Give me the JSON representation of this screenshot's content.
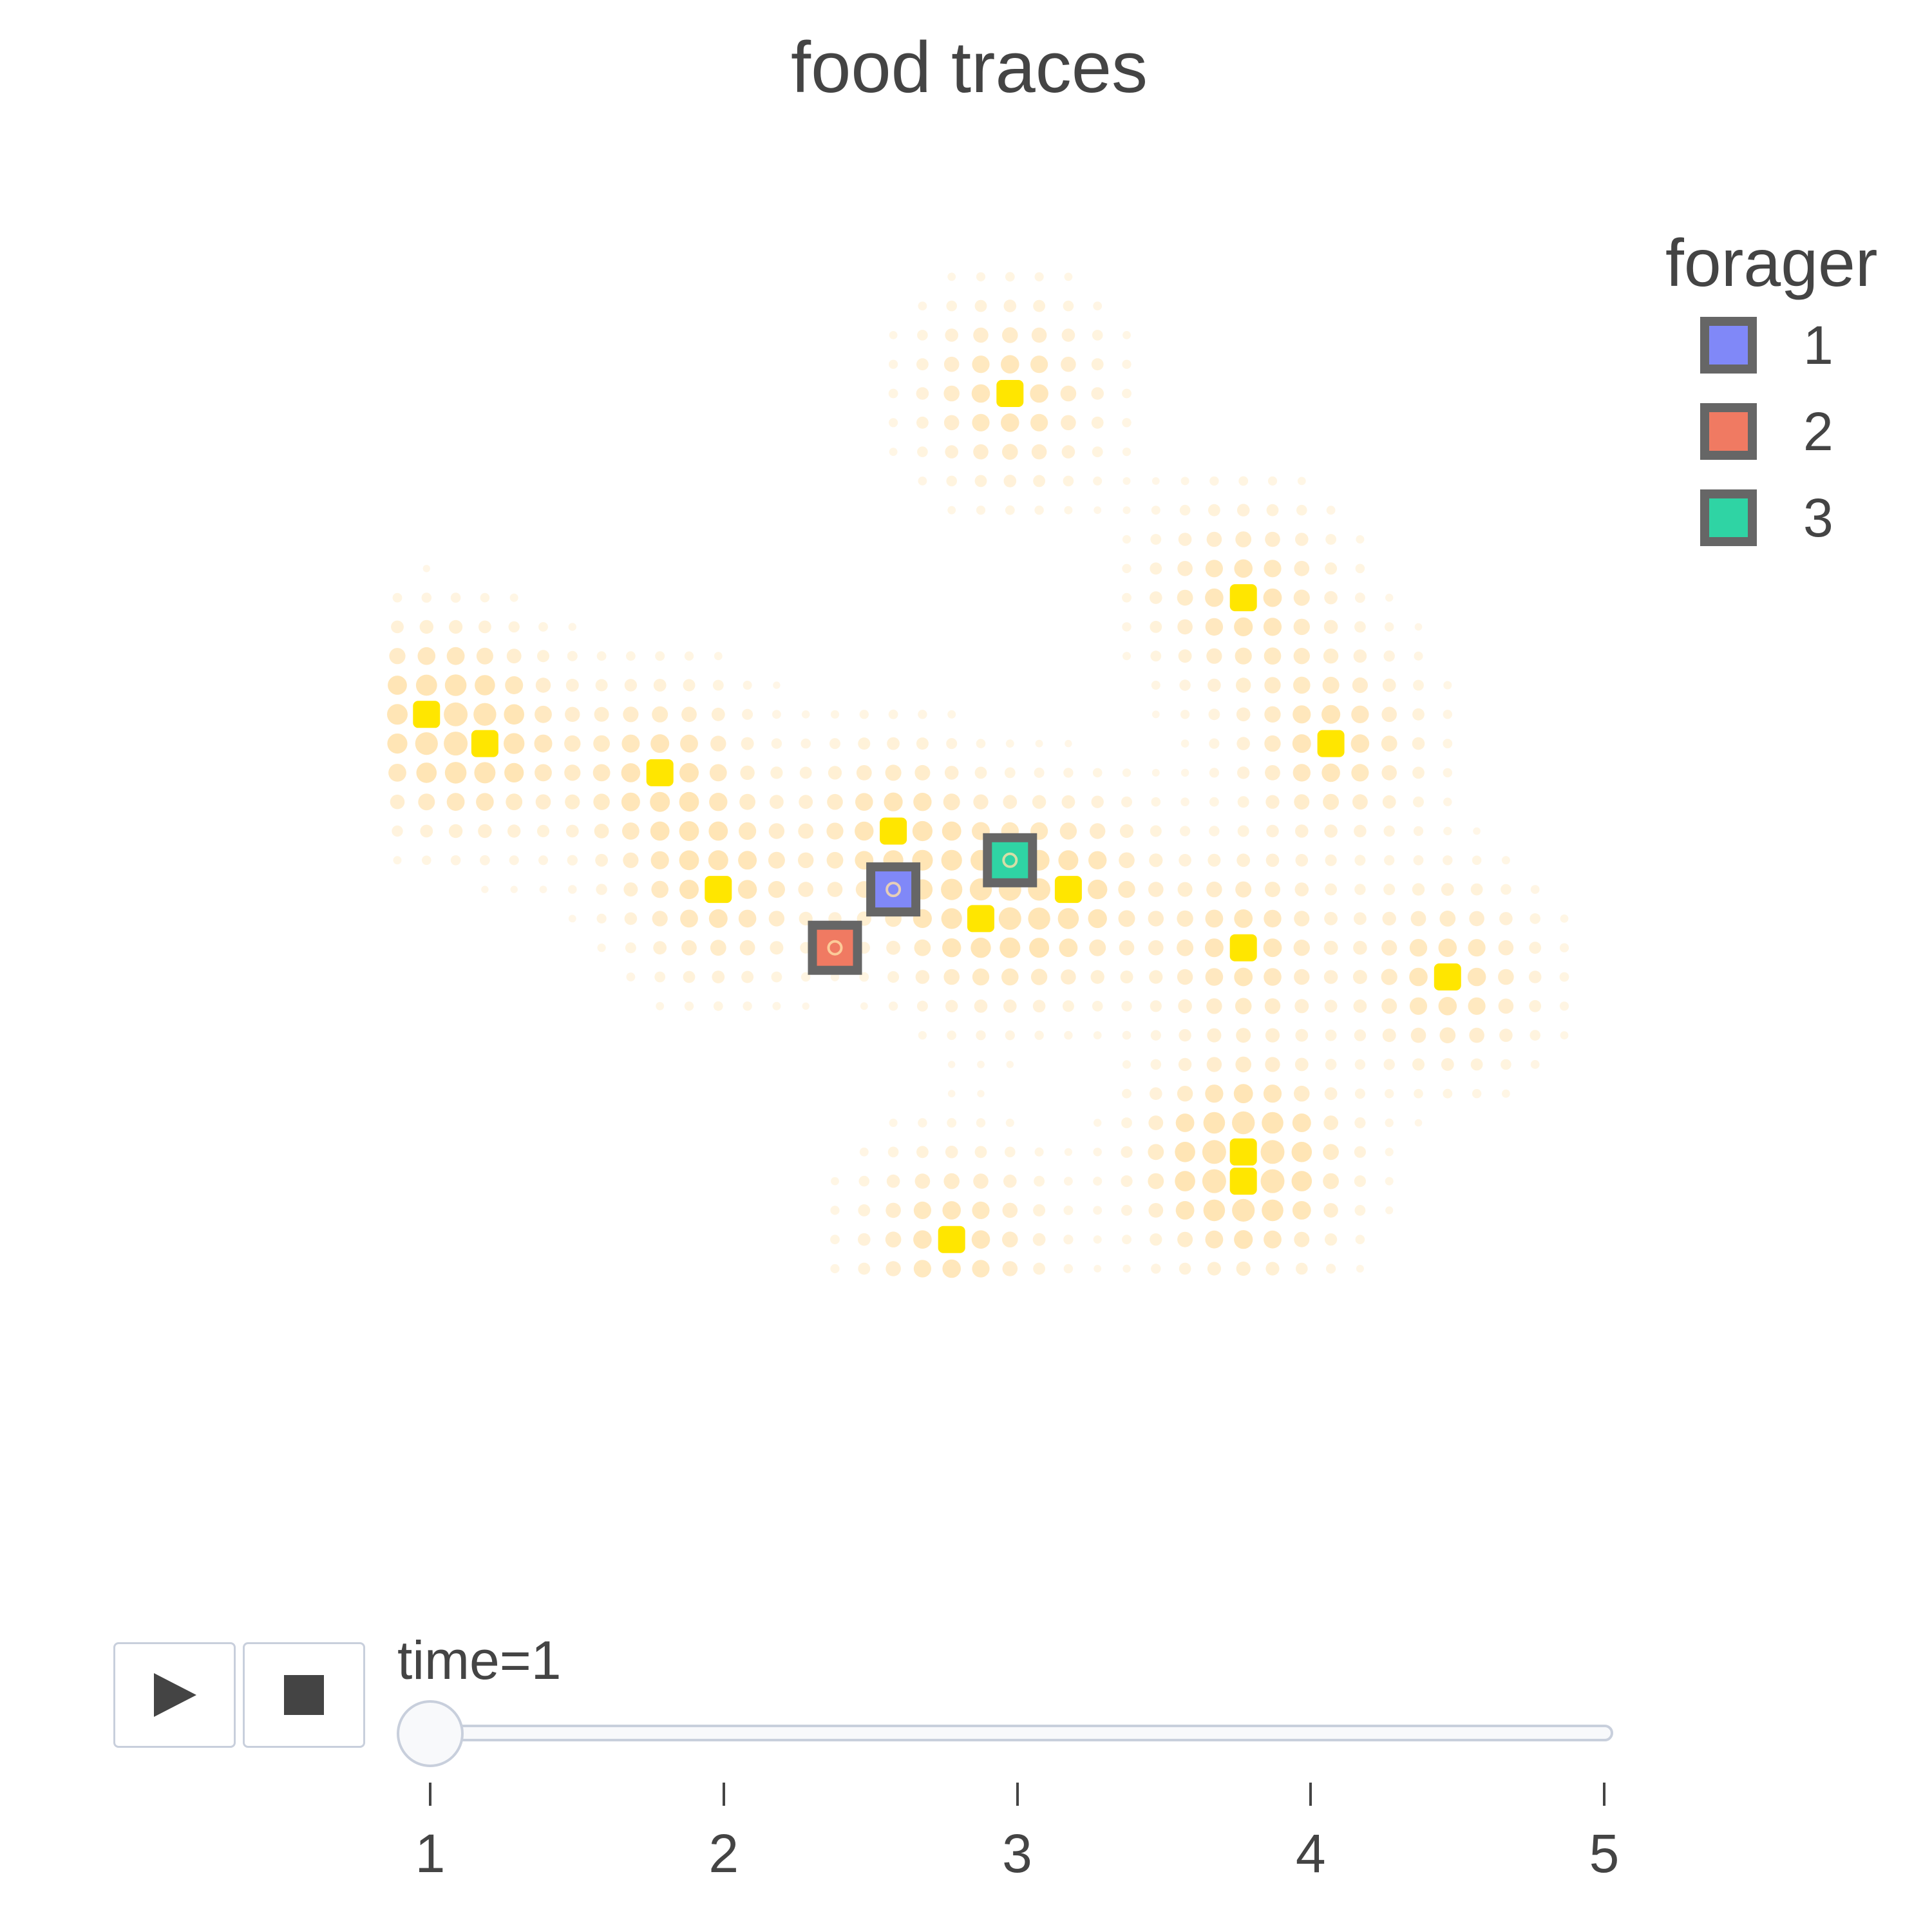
{
  "chart_data": {
    "type": "scatter",
    "title": "food traces",
    "xlabel": "",
    "ylabel": "",
    "grid": false,
    "legend_placement": "top-right",
    "legend": {
      "title": "forager",
      "entries": [
        {
          "label": "1",
          "color": "#8088f8"
        },
        {
          "label": "2",
          "color": "#f07a62"
        },
        {
          "label": "3",
          "color": "#2fd4a4"
        }
      ]
    },
    "colors": {
      "food": "#ffe600",
      "trace": "#ffe0a8",
      "forager_border": "#666666"
    },
    "food": [
      {
        "x": 21,
        "y": 30
      },
      {
        "x": 29,
        "y": 23
      },
      {
        "x": 1,
        "y": 19
      },
      {
        "x": 3,
        "y": 18
      },
      {
        "x": 9,
        "y": 17
      },
      {
        "x": 32,
        "y": 18
      },
      {
        "x": 17,
        "y": 15
      },
      {
        "x": 23,
        "y": 13
      },
      {
        "x": 11,
        "y": 13
      },
      {
        "x": 20,
        "y": 12
      },
      {
        "x": 29,
        "y": 11
      },
      {
        "x": 36,
        "y": 10
      },
      {
        "x": 29,
        "y": 4
      },
      {
        "x": 29,
        "y": 3
      },
      {
        "x": 19,
        "y": 1
      }
    ],
    "foragers": [
      {
        "name": "1",
        "x": 17,
        "y": 13
      },
      {
        "name": "2",
        "x": 15,
        "y": 11
      },
      {
        "name": "3",
        "x": 21,
        "y": 14
      }
    ]
  },
  "controls": {
    "play_icon": "play-icon",
    "stop_icon": "stop-icon",
    "slider_prefix": "time=",
    "current_time": "1",
    "slider_steps": [
      "1",
      "2",
      "3",
      "4",
      "5"
    ]
  }
}
